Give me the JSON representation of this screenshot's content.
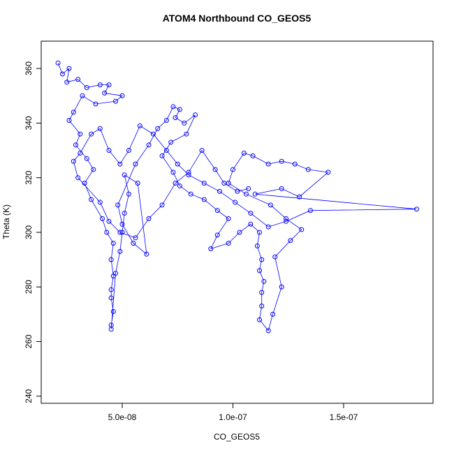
{
  "chart_data": {
    "type": "line",
    "title": "ATOM4 Northbound CO_GEOS5",
    "xlabel": "CO_GEOS5",
    "ylabel": "Theta (K)",
    "x": [
      2.1e-08,
      2.3e-08,
      2.6e-08,
      2.5e-08,
      3e-08,
      3.4e-08,
      4e-08,
      4.4e-08,
      4.2e-08,
      5e-08,
      4.7e-08,
      3.8e-08,
      3.2e-08,
      2.8e-08,
      2.6e-08,
      3.1e-08,
      2.9e-08,
      3.4e-08,
      3.7e-08,
      3.3e-08,
      3.6e-08,
      4.1e-08,
      4.3e-08,
      4.6e-08,
      4.5e-08,
      4.6e-08,
      4.5e-08,
      4.5e-08,
      4.6e-08,
      4.5e-08,
      4.5e-08,
      4.7e-08,
      4.9e-08,
      5e-08,
      5.1e-08,
      5.3e-08,
      5.1e-08,
      5.7e-08,
      6.1e-08,
      5.5e-08,
      5e-08,
      4.8e-08,
      5.6e-08,
      6.2e-08,
      6.6e-08,
      7e-08,
      7.3e-08,
      7.6e-08,
      7.4e-08,
      7.8e-08,
      8.3e-08,
      7.9e-08,
      7.2e-08,
      6.8e-08,
      7.3e-08,
      7.6e-08,
      8.1e-08,
      8.7e-08,
      9.3e-08,
      9.8e-08,
      9.3e-08,
      9e-08,
      9.8e-08,
      1.03e-07,
      1.08e-07,
      1.12e-07,
      1.11e-07,
      1.13e-07,
      1.12e-07,
      1.14e-07,
      1.13e-07,
      1.13e-07,
      1.12e-07,
      1.16e-07,
      1.18e-07,
      1.22e-07,
      1.19e-07,
      1.26e-07,
      1.31e-07,
      1.24e-07,
      1.17e-07,
      1.06e-07,
      9.8e-08,
      1e-07,
      1.05e-07,
      1.09e-07,
      1.16e-07,
      1.22e-07,
      1.28e-07,
      1.34e-07,
      1.43e-07,
      1.3e-07,
      1.22e-07,
      1.1e-07,
      1.83e-07,
      1.35e-07,
      1.24e-07,
      1.16e-07,
      1.08e-07,
      1.01e-07,
      9.4e-08,
      8.7e-08,
      8e-08,
      7.5e-08,
      7e-08,
      6.4e-08,
      5.8e-08,
      5.3e-08,
      4.9e-08,
      4.4e-08,
      4e-08,
      3.6e-08,
      3.1e-08,
      2.8e-08,
      3e-08,
      4e-08,
      4.4e-08,
      4.9e-08,
      5.6e-08,
      6.2e-08,
      6.8e-08,
      7.4e-08,
      8e-08,
      8.6e-08,
      9.2e-08,
      9.6e-08,
      1.02e-07,
      1.07e-07
    ],
    "series": [
      {
        "color": "#0000ff",
        "values": [
          362,
          358,
          360,
          355,
          356,
          353,
          354,
          354,
          351,
          350,
          348,
          347,
          350,
          344,
          341,
          336,
          332,
          327,
          323,
          318,
          312,
          305,
          300,
          296,
          290,
          284,
          279,
          276,
          271,
          266,
          264.5,
          285,
          293,
          300,
          307,
          314,
          321,
          318,
          292,
          296,
          303,
          310,
          325,
          332,
          338,
          341,
          346,
          345,
          342,
          340,
          343,
          336,
          333,
          328,
          322,
          317,
          314,
          312,
          308,
          305,
          299,
          294,
          296,
          300,
          303,
          300,
          295,
          290,
          286,
          282,
          278,
          273,
          268,
          264,
          270,
          280,
          291,
          297,
          301,
          305,
          310,
          314,
          318,
          323,
          329,
          328,
          325,
          326,
          325,
          323,
          322,
          313,
          316,
          314,
          308.5,
          308,
          304,
          302,
          307,
          311,
          315,
          318,
          321,
          325,
          330,
          336,
          339,
          330,
          325,
          330,
          338,
          336,
          329,
          326,
          320,
          311,
          304,
          300,
          298,
          305,
          310,
          318,
          322,
          330,
          323,
          318,
          315,
          316
        ]
      }
    ],
    "xlim": [
      1.34e-08,
      1.904e-07
    ],
    "ylim": [
      237.4,
      370
    ],
    "xticks": [
      {
        "value": 5e-08,
        "label": "5.0e-08"
      },
      {
        "value": 1e-07,
        "label": "1.0e-07"
      },
      {
        "value": 1.5e-07,
        "label": "1.5e-07"
      }
    ],
    "yticks": [
      240,
      260,
      280,
      300,
      320,
      340,
      360
    ]
  }
}
